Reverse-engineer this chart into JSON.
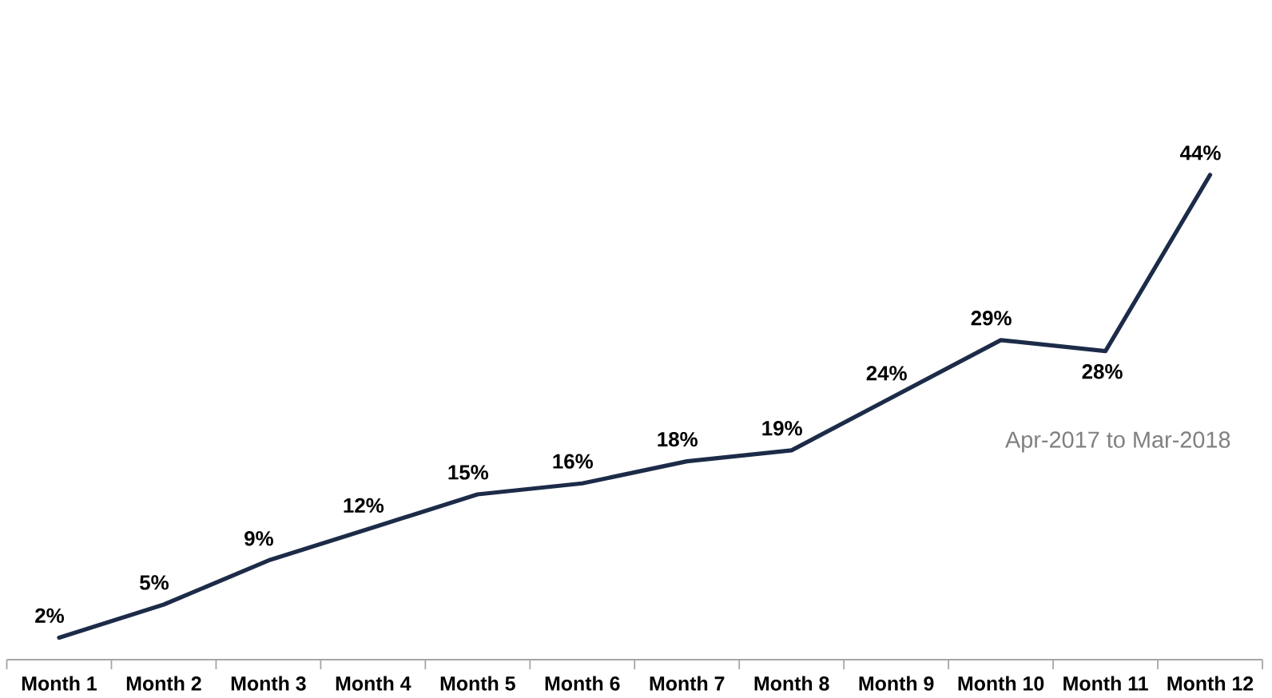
{
  "chart_data": {
    "type": "line",
    "categories": [
      "Month 1",
      "Month 2",
      "Month 3",
      "Month 4",
      "Month 5",
      "Month 6",
      "Month 7",
      "Month 8",
      "Month 9",
      "Month 10",
      "Month 11",
      "Month 12"
    ],
    "values": [
      2,
      5,
      9,
      12,
      15,
      16,
      18,
      19,
      24,
      29,
      28,
      44
    ],
    "value_labels": [
      "2%",
      "5%",
      "9%",
      "12%",
      "15%",
      "16%",
      "18%",
      "19%",
      "24%",
      "29%",
      "28%",
      "44%"
    ],
    "color": "#1c2b48",
    "tick_labels": "x",
    "annotations": [
      "Apr-2017 to Mar-2018"
    ]
  }
}
